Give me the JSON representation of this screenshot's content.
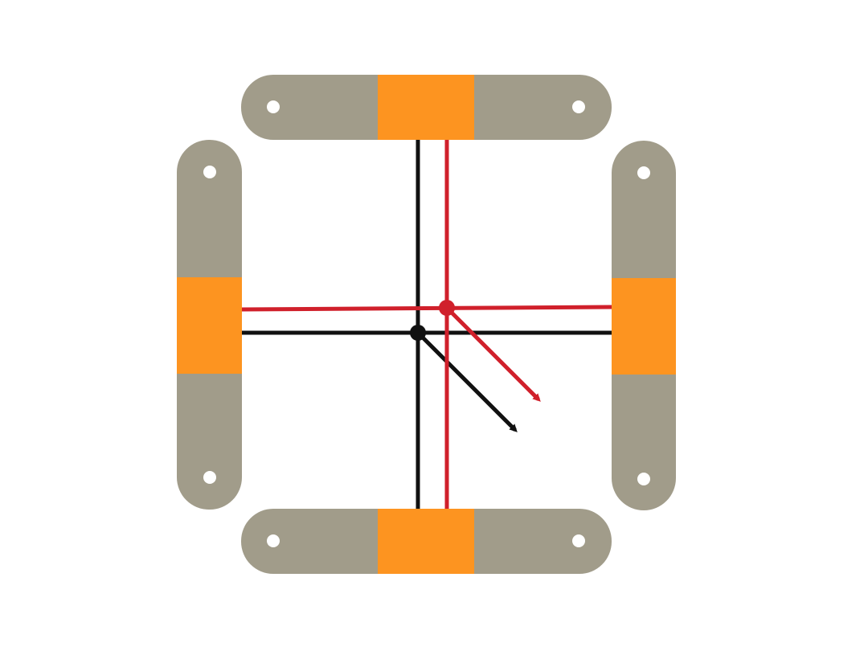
{
  "colors": {
    "background": "#ffffff",
    "bar": "#a19c8a",
    "slider": "#fd9420",
    "hole": "#ffffff",
    "reference": "#111111",
    "displaced": "#d0202b"
  },
  "bars": [
    {
      "id": "top",
      "orientation": "horizontal",
      "holes": 2
    },
    {
      "id": "bottom",
      "orientation": "horizontal",
      "holes": 2
    },
    {
      "id": "left",
      "orientation": "vertical",
      "holes": 2
    },
    {
      "id": "right",
      "orientation": "vertical",
      "holes": 2
    }
  ],
  "lines": {
    "reference": {
      "label": "",
      "color": "#111111"
    },
    "displaced": {
      "label": "",
      "color": "#d0202b"
    }
  },
  "markers": {
    "reference_center": "black-pivot",
    "displaced_center": "red-pivot"
  }
}
